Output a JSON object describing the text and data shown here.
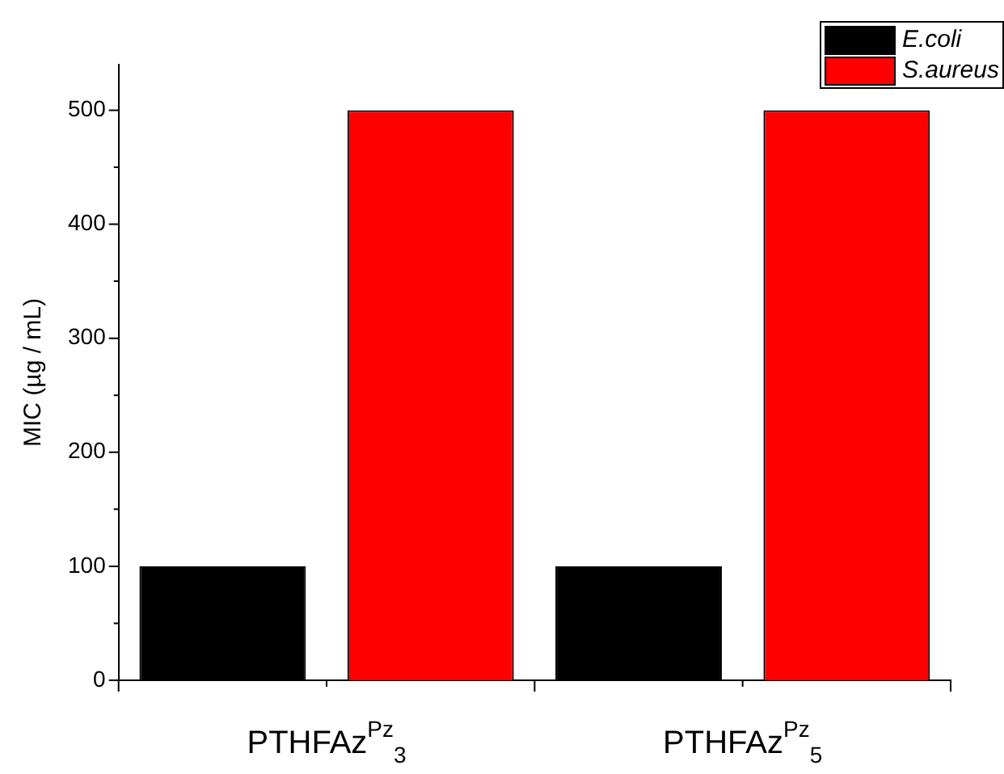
{
  "chart_data": {
    "type": "bar",
    "ylabel": "MIC (µg / mL)",
    "categories": [
      "PTHFAz$^{Pz}$$_{3}$",
      "PTHFAz$^{Pz}$$_{5}$"
    ],
    "series": [
      {
        "name": "E.coli",
        "color": "#000000",
        "values": [
          100,
          100
        ]
      },
      {
        "name": "S.aureus",
        "color": "#ff0000",
        "values": [
          500,
          500
        ]
      }
    ],
    "ylim": [
      0,
      540
    ],
    "yticks": [
      0,
      100,
      200,
      300,
      400,
      500
    ],
    "grid": false,
    "legend": "top right"
  }
}
